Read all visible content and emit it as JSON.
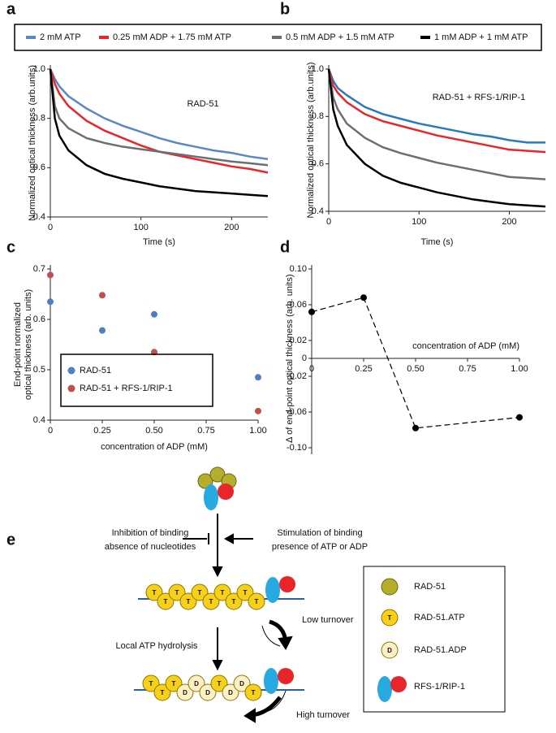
{
  "panel_labels": [
    "a",
    "b",
    "c",
    "d",
    "e"
  ],
  "chart_data": [
    {
      "type": "line",
      "title": "RAD-51",
      "xlabel": "Time (s)",
      "ylabel": "Normalized optical thickness (arb.units)",
      "xlim": [
        0,
        240
      ],
      "xticks": [
        0,
        100,
        200
      ],
      "ylim": [
        0.4,
        1.0
      ],
      "yticks": [
        0.4,
        0.6,
        0.8,
        {
          "value": 1.0,
          "label": "1.0"
        }
      ],
      "x": [
        0,
        5,
        10,
        20,
        40,
        60,
        80,
        100,
        120,
        140,
        160,
        180,
        200,
        220,
        240
      ],
      "series": [
        {
          "name": "2 mM ATP",
          "color": "#5b87c5",
          "values": [
            1.0,
            0.96,
            0.93,
            0.89,
            0.84,
            0.8,
            0.77,
            0.745,
            0.72,
            0.7,
            0.685,
            0.67,
            0.66,
            0.645,
            0.635
          ]
        },
        {
          "name": "0.25 mM ADP + 1.75 mM ATP",
          "color": "#e8262a",
          "values": [
            1.0,
            0.94,
            0.9,
            0.85,
            0.79,
            0.75,
            0.72,
            0.69,
            0.665,
            0.65,
            0.635,
            0.62,
            0.605,
            0.595,
            0.58
          ]
        },
        {
          "name": "0.5 mM ADP + 1.5 mM ATP",
          "color": "#6d6e70",
          "values": [
            1.0,
            0.85,
            0.8,
            0.76,
            0.72,
            0.7,
            0.685,
            0.675,
            0.665,
            0.655,
            0.645,
            0.635,
            0.625,
            0.618,
            0.61
          ]
        },
        {
          "name": "1 mM ADP + 1 mM ATP",
          "color": "#000000",
          "values": [
            1.0,
            0.8,
            0.73,
            0.67,
            0.61,
            0.575,
            0.555,
            0.54,
            0.525,
            0.515,
            0.505,
            0.5,
            0.495,
            0.49,
            0.485
          ]
        }
      ]
    },
    {
      "type": "line",
      "title": "RAD-51 + RFS-1/RIP-1",
      "xlabel": "Time (s)",
      "ylabel": "Normalized optical thickness (arb.units)",
      "xlim": [
        0,
        240
      ],
      "xticks": [
        0,
        100,
        200
      ],
      "ylim": [
        0.4,
        1.0
      ],
      "yticks": [
        0.4,
        0.6,
        0.8,
        {
          "value": 1.0,
          "label": "1.0"
        }
      ],
      "x": [
        0,
        5,
        10,
        20,
        40,
        60,
        80,
        100,
        120,
        140,
        160,
        180,
        200,
        220,
        240
      ],
      "series": [
        {
          "color": "#2a78c0",
          "values": [
            1.0,
            0.95,
            0.92,
            0.89,
            0.84,
            0.81,
            0.79,
            0.77,
            0.755,
            0.74,
            0.725,
            0.715,
            0.7,
            0.69,
            0.69
          ]
        },
        {
          "color": "#e8262a",
          "values": [
            1.0,
            0.93,
            0.9,
            0.86,
            0.81,
            0.78,
            0.76,
            0.74,
            0.72,
            0.705,
            0.69,
            0.675,
            0.66,
            0.655,
            0.65
          ]
        },
        {
          "color": "#6d6e70",
          "values": [
            1.0,
            0.88,
            0.83,
            0.77,
            0.71,
            0.67,
            0.645,
            0.625,
            0.605,
            0.59,
            0.575,
            0.56,
            0.545,
            0.54,
            0.535
          ]
        },
        {
          "color": "#000000",
          "values": [
            1.0,
            0.83,
            0.76,
            0.68,
            0.6,
            0.55,
            0.52,
            0.5,
            0.48,
            0.465,
            0.45,
            0.44,
            0.43,
            0.425,
            0.42
          ]
        }
      ]
    },
    {
      "type": "scatter",
      "xlabel": "concentration of ADP (mM)",
      "ylabel": [
        "End-point normalized",
        "optical thickness (arb. units)"
      ],
      "xlim": [
        0,
        1
      ],
      "xticks": [
        0,
        0.25,
        {
          "value": 0.5,
          "label": "0.50"
        },
        0.75,
        {
          "value": 1,
          "label": "1.00"
        }
      ],
      "ylim": [
        0.4,
        0.7
      ],
      "yticks": [
        0.4,
        0.5,
        0.6,
        0.7
      ],
      "x": [
        0,
        0.25,
        0.5,
        1
      ],
      "series": [
        {
          "name": "RAD-51",
          "color": "#4e7fc0",
          "values": [
            0.635,
            0.578,
            0.61,
            0.485
          ]
        },
        {
          "name": "RAD-51 + RFS-1/RIP-1",
          "color": "#c0504d",
          "values": [
            0.688,
            0.648,
            0.535,
            0.418
          ]
        }
      ]
    },
    {
      "type": "line",
      "markers": true,
      "line_style": "dashed",
      "xlabel": "concentration of ADP (mM)",
      "ylabel": "∆ of end-point optical thickness (arb. units)",
      "xlim": [
        0,
        1
      ],
      "xticks": [
        0,
        0.25,
        {
          "value": 0.5,
          "label": "0.50"
        },
        0.75,
        {
          "value": 1,
          "label": "1.00"
        }
      ],
      "ylim": [
        -0.1,
        0.1
      ],
      "yticks": [
        {
          "value": 0.1,
          "label": "0.10"
        },
        0.06,
        0.02,
        0,
        -0.02,
        -0.06,
        {
          "value": -0.1,
          "label": "-0.10"
        }
      ],
      "x": [
        0,
        0.25,
        0.5,
        1
      ],
      "series": [
        {
          "color": "#000000",
          "values": [
            0.052,
            0.068,
            -0.078,
            -0.066
          ]
        }
      ]
    }
  ],
  "diagram": {
    "inhibition": [
      "Inhibition of binding",
      "absence of nucleotides"
    ],
    "stimulation": [
      "Stimulation of binding",
      "presence of ATP or ADP"
    ],
    "low_turnover": "Low turnover",
    "hydrolysis": "Local ATP hydrolysis",
    "high_turnover": "High turnover",
    "filament1": [
      "T",
      "T",
      "T",
      "T",
      "T",
      "T",
      "T",
      "T",
      "T",
      "T"
    ],
    "filament2": [
      "T",
      "T",
      "T",
      "D",
      "D",
      "D",
      "T",
      "D",
      "D",
      "T"
    ],
    "legend": [
      {
        "label": "RAD-51"
      },
      {
        "label": "RAD-51.ATP",
        "letter": "T"
      },
      {
        "label": "RAD-51.ADP",
        "letter": "D"
      },
      {
        "label": "RFS-1/RIP-1"
      }
    ]
  }
}
